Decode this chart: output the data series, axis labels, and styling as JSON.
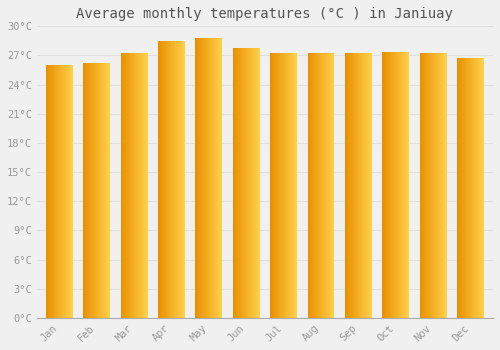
{
  "title": "Average monthly temperatures (°C ) in Janiuay",
  "months": [
    "Jan",
    "Feb",
    "Mar",
    "Apr",
    "May",
    "Jun",
    "Jul",
    "Aug",
    "Sep",
    "Oct",
    "Nov",
    "Dec"
  ],
  "temperatures": [
    26.0,
    26.2,
    27.3,
    28.5,
    28.8,
    27.8,
    27.2,
    27.2,
    27.3,
    27.4,
    27.2,
    26.7
  ],
  "bar_color_left": "#E89000",
  "bar_color_right": "#FFD04A",
  "bar_edge_color": "#CC8800",
  "ylim": [
    0,
    30
  ],
  "yticks": [
    0,
    3,
    6,
    9,
    12,
    15,
    18,
    21,
    24,
    27,
    30
  ],
  "ytick_labels": [
    "0°C",
    "3°C",
    "6°C",
    "9°C",
    "12°C",
    "15°C",
    "18°C",
    "21°C",
    "24°C",
    "27°C",
    "30°C"
  ],
  "background_color": "#f0f0f0",
  "grid_color": "#e0e0e0",
  "title_fontsize": 10,
  "tick_fontsize": 7.5,
  "font_color": "#999999",
  "title_color": "#555555"
}
